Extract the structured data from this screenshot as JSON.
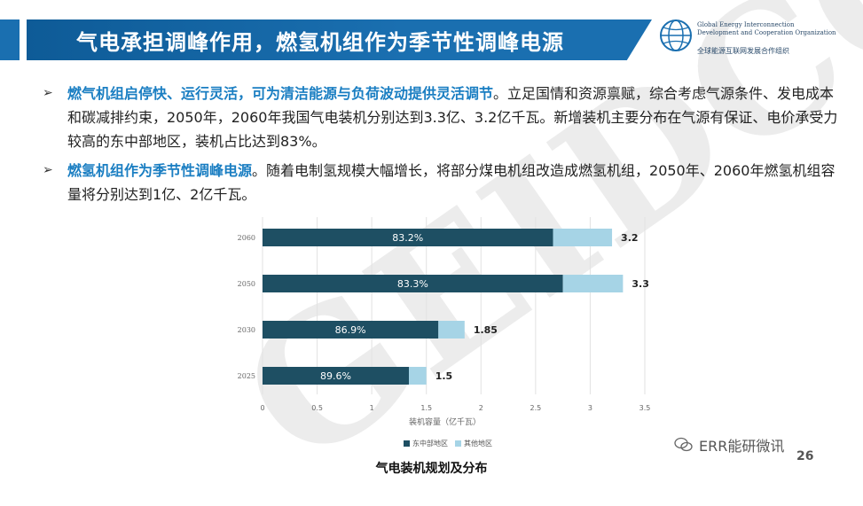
{
  "header": {
    "title": "气电承担调峰作用，燃氢机组作为季节性调峰电源",
    "logo_en": [
      "Global Energy Interconnection",
      "Development and Cooperation Organization"
    ],
    "logo_cn": "全球能源互联网发展合作组织"
  },
  "bullets": [
    {
      "marker": "➢",
      "highlight": "燃气机组启停快、运行灵活，可为清洁能源与负荷波动提供灵活调节",
      "text": "。立足国情和资源禀赋，综合考虑气源条件、发电成本和碳减排约束，2050年，2060年我国气电装机分别达到3.3亿、3.2亿千瓦。新增装机主要分布在气源有保证、电价承受力较高的东中部地区，装机占比达到83%。"
    },
    {
      "marker": "➢",
      "highlight": "燃氢机组作为季节性调峰电源",
      "text": "。随着电制氢规模大幅增长，将部分煤电机组改造成燃氢机组，2050年、2060年燃氢机组容量将分别达到1亿、2亿千瓦。"
    }
  ],
  "watermark": "GEIDCO",
  "chart_title": "气电装机规划及分布",
  "chart_data": {
    "type": "bar",
    "orientation": "horizontal",
    "stacked": true,
    "categories": [
      "2060",
      "2050",
      "2030",
      "2025"
    ],
    "series": [
      {
        "name": "东中部地区",
        "color": "#1e4f63",
        "values": [
          2.66,
          2.75,
          1.61,
          1.34
        ],
        "labels": [
          "83.2%",
          "83.3%",
          "86.9%",
          "89.6%"
        ]
      },
      {
        "name": "其他地区",
        "color": "#a6d4e6",
        "values": [
          0.54,
          0.55,
          0.24,
          0.16
        ]
      }
    ],
    "totals": [
      "3.2",
      "3.3",
      "1.85",
      "1.5"
    ],
    "xlabel": "装机容量（亿千瓦）",
    "xlim": [
      0,
      3.5
    ],
    "xticks": [
      "0",
      "0.5",
      "1",
      "1.5",
      "2",
      "2.5",
      "3",
      "3.5"
    ],
    "grid": true,
    "legend": "bottom"
  },
  "footer": {
    "source": "ERR能研微讯",
    "page": "26"
  }
}
